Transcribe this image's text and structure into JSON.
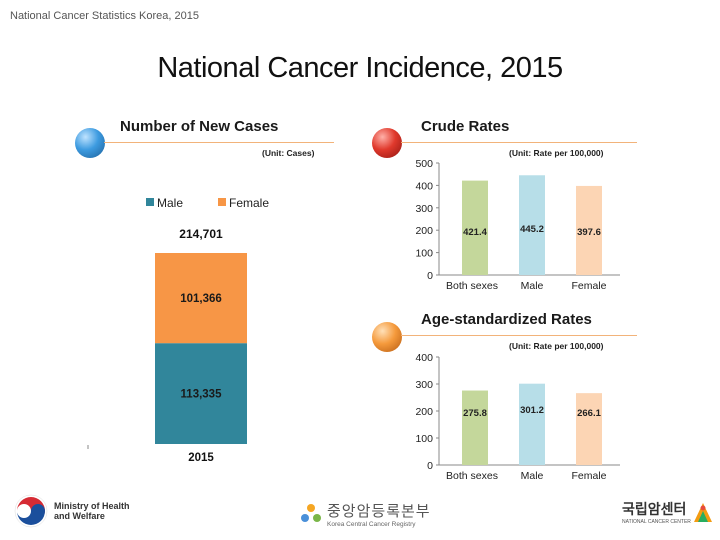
{
  "header": {
    "caption": "National Cancer Statistics Korea, 2015"
  },
  "title": "National Cancer Incidence, 2015",
  "colors": {
    "male": "#31869b",
    "female": "#f79646",
    "both_light": "#c4d79b",
    "male_light": "#b7dee8",
    "female_light": "#fcd5b4",
    "rule": "#f2b37a"
  },
  "panels": {
    "new_cases": {
      "title": "Number of New Cases",
      "unit": "(Unit: Cases)"
    },
    "crude": {
      "title": "Crude Rates",
      "unit": "(Unit:  Rate per 100,000)"
    },
    "asr": {
      "title": "Age-standardized Rates",
      "unit": "(Unit:  Rate per 100,000)"
    }
  },
  "chart_data": [
    {
      "type": "bar",
      "stacked": true,
      "title": "Number of New Cases",
      "categories": [
        "2015"
      ],
      "series": [
        {
          "name": "Male",
          "values": [
            113335
          ],
          "label": "113,335"
        },
        {
          "name": "Female",
          "values": [
            101366
          ],
          "label": "101,366"
        }
      ],
      "total": 214701,
      "total_label": "214,701",
      "legend": [
        "Male",
        "Female"
      ],
      "ylim": [
        0,
        214701
      ]
    },
    {
      "type": "bar",
      "title": "Crude Rates",
      "categories": [
        "Both sexes",
        "Male",
        "Female"
      ],
      "values": [
        421.4,
        445.2,
        397.6
      ],
      "labels": [
        "421.4",
        "445.2",
        "397.6"
      ],
      "yticks": [
        "0",
        "100",
        "200",
        "300",
        "400",
        "500"
      ],
      "ylim": [
        0,
        500
      ]
    },
    {
      "type": "bar",
      "title": "Age-standardized Rates",
      "categories": [
        "Both sexes",
        "Male",
        "Female"
      ],
      "values": [
        275.8,
        301.2,
        266.1
      ],
      "labels": [
        "275.8",
        "301.2",
        "266.1"
      ],
      "yticks": [
        "0",
        "100",
        "200",
        "300",
        "400"
      ],
      "ylim": [
        0,
        400
      ]
    }
  ],
  "footer": {
    "ministry_line1": "Ministry of Health",
    "ministry_line2": "and Welfare",
    "kccr_korean": "중앙암등록본부",
    "kccr_english": "Korea Central Cancer Registry",
    "ncc_korean": "국립암센터",
    "ncc_english": "NATIONAL CANCER CENTER"
  }
}
